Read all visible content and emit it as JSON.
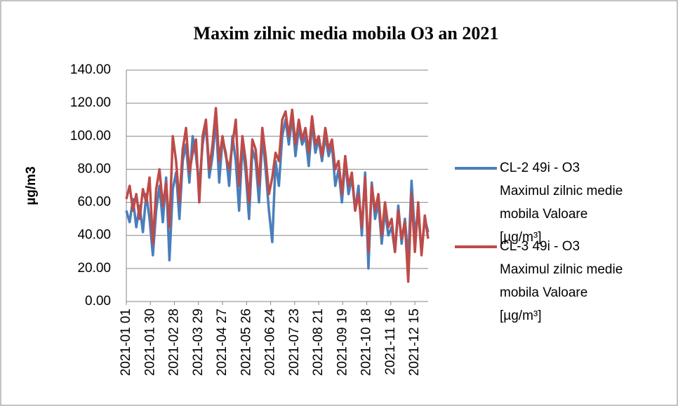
{
  "chart_data": {
    "type": "line",
    "title": "Maxim zilnic media mobila O3 an 2021",
    "y_label": "µg/m3",
    "xlim": [
      0,
      364
    ],
    "xticks": [
      {
        "value": 0,
        "label": "2021-01 01"
      },
      {
        "value": 29,
        "label": "2021-01 30"
      },
      {
        "value": 58,
        "label": "2021-02 28"
      },
      {
        "value": 87,
        "label": "2021-03 29"
      },
      {
        "value": 116,
        "label": "2021-04 27"
      },
      {
        "value": 145,
        "label": "2021-05 26"
      },
      {
        "value": 174,
        "label": "2021-06 24"
      },
      {
        "value": 203,
        "label": "2021-07 23"
      },
      {
        "value": 232,
        "label": "2021-08 21"
      },
      {
        "value": 261,
        "label": "2021-09 19"
      },
      {
        "value": 290,
        "label": "2021-10 18"
      },
      {
        "value": 319,
        "label": "2021-11 16"
      },
      {
        "value": 348,
        "label": "2021-12 15"
      }
    ],
    "ylim": [
      0,
      140
    ],
    "yticks": [
      {
        "value": 0,
        "label": "0.00"
      },
      {
        "value": 20,
        "label": "20.00"
      },
      {
        "value": 40,
        "label": "40.00"
      },
      {
        "value": 60,
        "label": "60.00"
      },
      {
        "value": 80,
        "label": "80.00"
      },
      {
        "value": 100,
        "label": "100.00"
      },
      {
        "value": 120,
        "label": "120.00"
      },
      {
        "value": 140,
        "label": "140.00"
      }
    ],
    "grid": true,
    "legend": "right",
    "x": [
      0,
      4,
      8,
      12,
      16,
      20,
      24,
      28,
      32,
      36,
      40,
      44,
      48,
      52,
      56,
      60,
      64,
      68,
      72,
      76,
      80,
      84,
      88,
      92,
      96,
      100,
      104,
      108,
      112,
      116,
      120,
      124,
      128,
      132,
      136,
      140,
      144,
      148,
      152,
      156,
      160,
      164,
      168,
      172,
      176,
      180,
      184,
      188,
      192,
      196,
      200,
      204,
      208,
      212,
      216,
      220,
      224,
      228,
      232,
      236,
      240,
      244,
      248,
      252,
      256,
      260,
      264,
      268,
      272,
      276,
      280,
      284,
      288,
      292,
      296,
      300,
      304,
      308,
      312,
      316,
      320,
      324,
      328,
      332,
      336,
      340,
      344,
      348,
      352,
      356,
      360,
      364
    ],
    "series": [
      {
        "name": "CL-2 49i - O3 Maximul zilnic medie mobila Valoare [µg/m³]",
        "color": "#4a7ebb",
        "values": [
          55,
          48,
          62,
          45,
          58,
          42,
          65,
          50,
          28,
          55,
          70,
          48,
          75,
          25,
          68,
          78,
          50,
          85,
          95,
          72,
          100,
          88,
          70,
          95,
          108,
          75,
          88,
          110,
          72,
          98,
          90,
          70,
          100,
          85,
          55,
          95,
          78,
          50,
          92,
          85,
          60,
          100,
          80,
          55,
          36,
          85,
          70,
          100,
          110,
          95,
          112,
          88,
          105,
          95,
          100,
          82,
          108,
          90,
          98,
          85,
          100,
          88,
          95,
          70,
          80,
          60,
          85,
          65,
          75,
          55,
          70,
          40,
          78,
          20,
          72,
          50,
          60,
          35,
          55,
          40,
          45,
          30,
          58,
          35,
          50,
          25,
          73,
          40,
          55,
          30,
          50,
          42
        ]
      },
      {
        "name": "CL-3 49i - O3 Maximul zilnic medie mobila Valoare [µg/m³]",
        "color": "#be4b48",
        "values": [
          62,
          70,
          55,
          65,
          50,
          68,
          60,
          75,
          35,
          68,
          80,
          58,
          72,
          45,
          100,
          85,
          60,
          92,
          105,
          78,
          90,
          98,
          60,
          100,
          110,
          80,
          95,
          117,
          85,
          100,
          88,
          80,
          95,
          110,
          70,
          100,
          85,
          60,
          98,
          92,
          70,
          105,
          88,
          65,
          75,
          90,
          85,
          110,
          115,
          100,
          116,
          95,
          110,
          98,
          105,
          90,
          112,
          95,
          100,
          88,
          105,
          92,
          98,
          80,
          85,
          65,
          88,
          70,
          78,
          55,
          65,
          45,
          75,
          30,
          70,
          55,
          65,
          40,
          60,
          45,
          50,
          30,
          55,
          38,
          48,
          12,
          65,
          30,
          60,
          28,
          52,
          38
        ]
      }
    ]
  }
}
